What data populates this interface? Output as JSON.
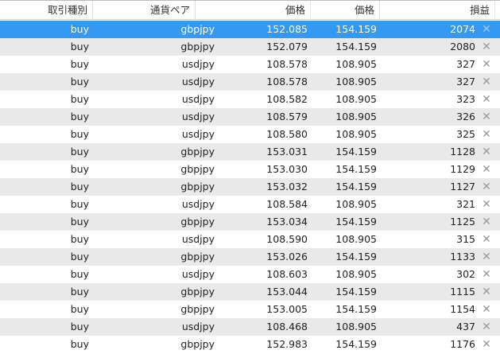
{
  "headers": [
    "取引種別",
    "通貨ペア",
    "価格",
    "価格",
    "損益"
  ],
  "selected_row": 0,
  "close_icon": "close-x-icon",
  "rows": [
    [
      "buy",
      "gbpjpy",
      "152.085",
      "154.159",
      "2074"
    ],
    [
      "buy",
      "gbpjpy",
      "152.079",
      "154.159",
      "2080"
    ],
    [
      "buy",
      "usdjpy",
      "108.578",
      "108.905",
      "327"
    ],
    [
      "buy",
      "usdjpy",
      "108.578",
      "108.905",
      "327"
    ],
    [
      "buy",
      "usdjpy",
      "108.582",
      "108.905",
      "323"
    ],
    [
      "buy",
      "usdjpy",
      "108.579",
      "108.905",
      "326"
    ],
    [
      "buy",
      "usdjpy",
      "108.580",
      "108.905",
      "325"
    ],
    [
      "buy",
      "gbpjpy",
      "153.031",
      "154.159",
      "1128"
    ],
    [
      "buy",
      "gbpjpy",
      "153.030",
      "154.159",
      "1129"
    ],
    [
      "buy",
      "gbpjpy",
      "153.032",
      "154.159",
      "1127"
    ],
    [
      "buy",
      "usdjpy",
      "108.584",
      "108.905",
      "321"
    ],
    [
      "buy",
      "gbpjpy",
      "153.034",
      "154.159",
      "1125"
    ],
    [
      "buy",
      "usdjpy",
      "108.590",
      "108.905",
      "315"
    ],
    [
      "buy",
      "gbpjpy",
      "153.026",
      "154.159",
      "1133"
    ],
    [
      "buy",
      "usdjpy",
      "108.603",
      "108.905",
      "302"
    ],
    [
      "buy",
      "gbpjpy",
      "153.044",
      "154.159",
      "1115"
    ],
    [
      "buy",
      "gbpjpy",
      "153.005",
      "154.159",
      "1154"
    ],
    [
      "buy",
      "usdjpy",
      "108.468",
      "108.905",
      "437"
    ],
    [
      "buy",
      "gbpjpy",
      "152.983",
      "154.159",
      "1176"
    ]
  ]
}
